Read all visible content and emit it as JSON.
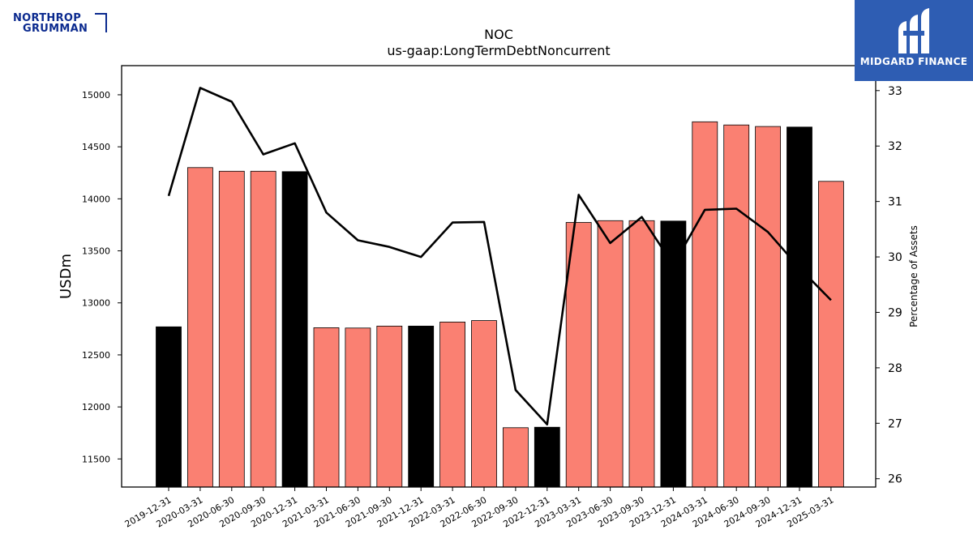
{
  "logos": {
    "left": {
      "line1": "NORTHROP",
      "line2": "GRUMMAN"
    },
    "right": {
      "text": "MIDGARD FINANCE"
    }
  },
  "colors": {
    "bar_quarter": "#fa8072",
    "bar_year_end": "#000000",
    "line": "#000000",
    "brand_box": "#2e5db3",
    "company_logo": "#0b2a8f"
  },
  "chart_data": {
    "type": "bar",
    "title": "NOC",
    "subtitle": "us-gaap:LongTermDebtNoncurrent",
    "ylabel": "USDm",
    "y2label": "Percentage of Assets",
    "categories": [
      "2019-12-31",
      "2020-03-31",
      "2020-06-30",
      "2020-09-30",
      "2020-12-31",
      "2021-03-31",
      "2021-06-30",
      "2021-09-30",
      "2021-12-31",
      "2022-03-31",
      "2022-06-30",
      "2022-09-30",
      "2022-12-31",
      "2023-03-31",
      "2023-06-30",
      "2023-09-30",
      "2023-12-31",
      "2024-03-31",
      "2024-06-30",
      "2024-09-30",
      "2024-12-31",
      "2025-03-31"
    ],
    "series": [
      {
        "type": "bar",
        "axis": "left",
        "values": [
          12770,
          14300,
          14265,
          14265,
          14261,
          12761,
          12758,
          12777,
          12777,
          12816,
          12830,
          11800,
          11805,
          13773,
          13790,
          13790,
          13786,
          14740,
          14710,
          14695,
          14690,
          14168
        ],
        "year_end": [
          true,
          false,
          false,
          false,
          true,
          false,
          false,
          false,
          true,
          false,
          false,
          false,
          true,
          false,
          false,
          false,
          true,
          false,
          false,
          false,
          true,
          false
        ]
      },
      {
        "type": "line",
        "axis": "right",
        "values": [
          31.1,
          33.05,
          32.8,
          31.85,
          32.05,
          30.8,
          30.3,
          30.18,
          30.0,
          30.62,
          30.63,
          27.6,
          26.98,
          31.12,
          30.25,
          30.72,
          29.85,
          30.85,
          30.87,
          30.45,
          29.8,
          29.22
        ]
      }
    ],
    "ylim": [
      11230,
      15280
    ],
    "yticks": [
      11500,
      12000,
      12500,
      13000,
      13500,
      14000,
      14500,
      15000
    ],
    "y2lim": [
      25.85,
      33.45
    ],
    "y2ticks": [
      26,
      27,
      28,
      29,
      30,
      31,
      32,
      33
    ],
    "grid": false,
    "legend": "none"
  }
}
